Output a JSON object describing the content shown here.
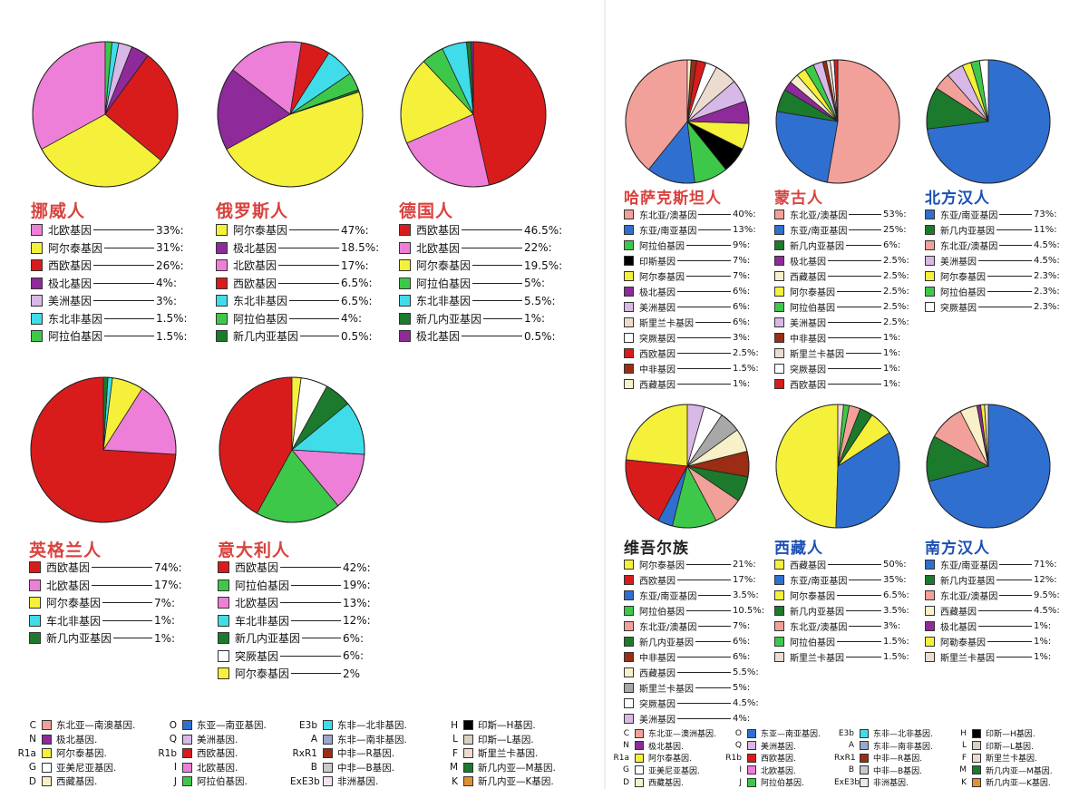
{
  "colors": {
    "C": "#f2a09a",
    "N": "#8e2a9a",
    "R1a": "#f5f03a",
    "G": "#ffffff",
    "D": "#f7f0c8",
    "O": "#2f6fd0",
    "Q": "#d8b8e6",
    "R1b": "#d81c1c",
    "I": "#ee7fd8",
    "J": "#3ec84a",
    "E3b": "#40dcea",
    "A": "#9aa8cc",
    "RxR1": "#9a2d14",
    "B": "#c9c9c9",
    "ExE3b": "#f2e3ef",
    "H": "#000000",
    "L": "#d8d0c0",
    "F": "#ecdccf",
    "M": "#1b7a2c",
    "K": "#e09030",
    "grey": "#a8a8a8",
    "salmon_title": "#d9423e",
    "blue_title": "#1b4fb5",
    "gold_title": "#222222"
  },
  "chart_data": [
    {
      "type": "pie",
      "title": "挪威人",
      "series": [
        {
          "label": "北欧基因",
          "value": 33,
          "value_text": "33%:",
          "color_key": "I"
        },
        {
          "label": "阿尔泰基因",
          "value": 31,
          "value_text": "31%:",
          "color_key": "R1a"
        },
        {
          "label": "西欧基因",
          "value": 26,
          "value_text": "26%:",
          "color_key": "R1b"
        },
        {
          "label": "极北基因",
          "value": 4,
          "value_text": "4%:",
          "color_key": "N"
        },
        {
          "label": "美洲基因",
          "value": 3,
          "value_text": "3%:",
          "color_key": "Q"
        },
        {
          "label": "东北非基因",
          "value": 1.5,
          "value_text": "1.5%:",
          "color_key": "E3b"
        },
        {
          "label": "阿拉伯基因",
          "value": 1.5,
          "value_text": "1.5%:",
          "color_key": "J"
        }
      ]
    },
    {
      "type": "pie",
      "title": "俄罗斯人",
      "series": [
        {
          "label": "阿尔泰基因",
          "value": 47,
          "value_text": "47%:",
          "color_key": "R1a"
        },
        {
          "label": "极北基因",
          "value": 18.5,
          "value_text": "18.5%:",
          "color_key": "N"
        },
        {
          "label": "北欧基因",
          "value": 17,
          "value_text": "17%:",
          "color_key": "I"
        },
        {
          "label": "西欧基因",
          "value": 6.5,
          "value_text": "6.5%:",
          "color_key": "R1b"
        },
        {
          "label": "东北非基因",
          "value": 6.5,
          "value_text": "6.5%:",
          "color_key": "E3b"
        },
        {
          "label": "阿拉伯基因",
          "value": 4,
          "value_text": "4%:",
          "color_key": "J"
        },
        {
          "label": "新几内亚基因",
          "value": 0.5,
          "value_text": "0.5%:",
          "color_key": "M"
        }
      ]
    },
    {
      "type": "pie",
      "title": "德国人",
      "series": [
        {
          "label": "西欧基因",
          "value": 46.5,
          "value_text": "46.5%:",
          "color_key": "R1b"
        },
        {
          "label": "北欧基因",
          "value": 22,
          "value_text": "22%:",
          "color_key": "I"
        },
        {
          "label": "阿尔泰基因",
          "value": 19.5,
          "value_text": "19.5%:",
          "color_key": "R1a"
        },
        {
          "label": "阿拉伯基因",
          "value": 5,
          "value_text": "5%:",
          "color_key": "J"
        },
        {
          "label": "东北非基因",
          "value": 5.5,
          "value_text": "5.5%:",
          "color_key": "E3b"
        },
        {
          "label": "新几内亚基因",
          "value": 1,
          "value_text": "1%:",
          "color_key": "M"
        },
        {
          "label": "极北基因",
          "value": 0.5,
          "value_text": "0.5%:",
          "color_key": "N"
        }
      ]
    },
    {
      "type": "pie",
      "title": "英格兰人",
      "series": [
        {
          "label": "西欧基因",
          "value": 74,
          "value_text": "74%:",
          "color_key": "R1b"
        },
        {
          "label": "北欧基因",
          "value": 17,
          "value_text": "17%:",
          "color_key": "I"
        },
        {
          "label": "阿尔泰基因",
          "value": 7,
          "value_text": "7%:",
          "color_key": "R1a"
        },
        {
          "label": "车北非基因",
          "value": 1,
          "value_text": "1%:",
          "color_key": "E3b"
        },
        {
          "label": "新几内亚基因",
          "value": 1,
          "value_text": "1%:",
          "color_key": "M"
        }
      ]
    },
    {
      "type": "pie",
      "title": "意大利人",
      "series": [
        {
          "label": "西欧基因",
          "value": 42,
          "value_text": "42%:",
          "color_key": "R1b"
        },
        {
          "label": "阿拉伯基因",
          "value": 19,
          "value_text": "19%:",
          "color_key": "J"
        },
        {
          "label": "北欧基因",
          "value": 13,
          "value_text": "13%:",
          "color_key": "I"
        },
        {
          "label": "车北非基因",
          "value": 12,
          "value_text": "12%:",
          "color_key": "E3b"
        },
        {
          "label": "新几内亚基因",
          "value": 6,
          "value_text": "6%:",
          "color_key": "M"
        },
        {
          "label": "突厥基因",
          "value": 6,
          "value_text": "6%:",
          "color_key": "G"
        },
        {
          "label": "阿尔泰基因",
          "value": 2,
          "value_text": "2%",
          "color_key": "R1a"
        }
      ]
    },
    {
      "type": "pie",
      "title": "哈萨克斯坦人",
      "series": [
        {
          "label": "东北亚/澳基因",
          "value": 40,
          "value_text": "40%:",
          "color_key": "C"
        },
        {
          "label": "东亚/南亚基因",
          "value": 13,
          "value_text": "13%:",
          "color_key": "O"
        },
        {
          "label": "阿拉伯基因",
          "value": 9,
          "value_text": "9%:",
          "color_key": "J"
        },
        {
          "label": "印斯基因",
          "value": 7,
          "value_text": "7%:",
          "color_key": "H"
        },
        {
          "label": "阿尔泰基因",
          "value": 7,
          "value_text": "7%:",
          "color_key": "R1a"
        },
        {
          "label": "极北基因",
          "value": 6,
          "value_text": "6%:",
          "color_key": "N"
        },
        {
          "label": "美洲基因",
          "value": 6,
          "value_text": "6%:",
          "color_key": "Q"
        },
        {
          "label": "斯里兰卡基因",
          "value": 6,
          "value_text": "6%:",
          "color_key": "F"
        },
        {
          "label": "突厥基因",
          "value": 3,
          "value_text": "3%:",
          "color_key": "G"
        },
        {
          "label": "西欧基因",
          "value": 2.5,
          "value_text": "2.5%:",
          "color_key": "R1b"
        },
        {
          "label": "中非基因",
          "value": 1.5,
          "value_text": "1.5%:",
          "color_key": "RxR1"
        },
        {
          "label": "西藏基因",
          "value": 1,
          "value_text": "1%:",
          "color_key": "D"
        }
      ]
    },
    {
      "type": "pie",
      "title": "蒙古人",
      "series": [
        {
          "label": "东北亚/澳基因",
          "value": 53,
          "value_text": "53%:",
          "color_key": "C"
        },
        {
          "label": "东亚/南亚基因",
          "value": 25,
          "value_text": "25%:",
          "color_key": "O"
        },
        {
          "label": "新几内亚基因",
          "value": 6,
          "value_text": "6%:",
          "color_key": "M"
        },
        {
          "label": "极北基因",
          "value": 2.5,
          "value_text": "2.5%:",
          "color_key": "N"
        },
        {
          "label": "西藏基因",
          "value": 2.5,
          "value_text": "2.5%:",
          "color_key": "D"
        },
        {
          "label": "阿尔泰基因",
          "value": 2.5,
          "value_text": "2.5%:",
          "color_key": "R1a"
        },
        {
          "label": "阿拉伯基因",
          "value": 2.5,
          "value_text": "2.5%:",
          "color_key": "J"
        },
        {
          "label": "美洲基因",
          "value": 2.5,
          "value_text": "2.5%:",
          "color_key": "Q"
        },
        {
          "label": "中非基因",
          "value": 1,
          "value_text": "1%:",
          "color_key": "RxR1"
        },
        {
          "label": "斯里兰卡基因",
          "value": 1,
          "value_text": "1%:",
          "color_key": "F"
        },
        {
          "label": "突厥基因",
          "value": 1,
          "value_text": "1%:",
          "color_key": "G"
        },
        {
          "label": "西欧基因",
          "value": 1,
          "value_text": "1%:",
          "color_key": "R1b"
        }
      ]
    },
    {
      "type": "pie",
      "title": "北方汉人",
      "series": [
        {
          "label": "东亚/南亚基因",
          "value": 73,
          "value_text": "73%:",
          "color_key": "O"
        },
        {
          "label": "新几内亚基因",
          "value": 11,
          "value_text": "11%:",
          "color_key": "M"
        },
        {
          "label": "东北亚/澳基因",
          "value": 4.5,
          "value_text": "4.5%:",
          "color_key": "C"
        },
        {
          "label": "美洲基因",
          "value": 4.5,
          "value_text": "4.5%:",
          "color_key": "Q"
        },
        {
          "label": "阿尔泰基因",
          "value": 2.3,
          "value_text": "2.3%:",
          "color_key": "R1a"
        },
        {
          "label": "阿拉伯基因",
          "value": 2.3,
          "value_text": "2.3%:",
          "color_key": "J"
        },
        {
          "label": "突厥基因",
          "value": 2.3,
          "value_text": "2.3%:",
          "color_key": "G"
        }
      ]
    },
    {
      "type": "pie",
      "title": "维吾尔族",
      "series": [
        {
          "label": "阿尔泰基因",
          "value": 21,
          "value_text": "21%:",
          "color_key": "R1a"
        },
        {
          "label": "西欧基因",
          "value": 17,
          "value_text": "17%:",
          "color_key": "R1b"
        },
        {
          "label": "东亚/南亚基因",
          "value": 3.5,
          "value_text": "3.5%:",
          "color_key": "O"
        },
        {
          "label": "阿拉伯基因",
          "value": 10.5,
          "value_text": "10.5%:",
          "color_key": "J"
        },
        {
          "label": "东北亚/澳基因",
          "value": 7,
          "value_text": "7%:",
          "color_key": "C"
        },
        {
          "label": "新几内亚基因",
          "value": 6,
          "value_text": "6%:",
          "color_key": "M"
        },
        {
          "label": "中非基因",
          "value": 6,
          "value_text": "6%:",
          "color_key": "RxR1"
        },
        {
          "label": "西藏基因",
          "value": 5.5,
          "value_text": "5.5%:",
          "color_key": "D"
        },
        {
          "label": "斯里兰卡基因",
          "value": 5,
          "value_text": "5%:",
          "color_key": "grey"
        },
        {
          "label": "突厥基因",
          "value": 4.5,
          "value_text": "4.5%:",
          "color_key": "G"
        },
        {
          "label": "美洲基因",
          "value": 4,
          "value_text": "4%:",
          "color_key": "Q"
        }
      ]
    },
    {
      "type": "pie",
      "title": "西藏人",
      "series": [
        {
          "label": "西藏基因",
          "value": 50,
          "value_text": "50%:",
          "color_key": "R1a"
        },
        {
          "label": "东亚/南亚基因",
          "value": 35,
          "value_text": "35%:",
          "color_key": "O"
        },
        {
          "label": "阿尔泰基因",
          "value": 6.5,
          "value_text": "6.5%:",
          "color_key": "R1a"
        },
        {
          "label": "新几内亚基因",
          "value": 3.5,
          "value_text": "3.5%:",
          "color_key": "M"
        },
        {
          "label": "东北亚/澳基因",
          "value": 3,
          "value_text": "3%:",
          "color_key": "C"
        },
        {
          "label": "阿拉伯基因",
          "value": 1.5,
          "value_text": "1.5%:",
          "color_key": "J"
        },
        {
          "label": "斯里兰卡基因",
          "value": 1.5,
          "value_text": "1.5%:",
          "color_key": "F"
        }
      ]
    },
    {
      "type": "pie",
      "title": "南方汉人",
      "series": [
        {
          "label": "东亚/南亚基因",
          "value": 71,
          "value_text": "71%:",
          "color_key": "O"
        },
        {
          "label": "新几内亚基因",
          "value": 12,
          "value_text": "12%:",
          "color_key": "M"
        },
        {
          "label": "东北亚/澳基因",
          "value": 9.5,
          "value_text": "9.5%:",
          "color_key": "C"
        },
        {
          "label": "西藏基因",
          "value": 4.5,
          "value_text": "4.5%:",
          "color_key": "D"
        },
        {
          "label": "极北基因",
          "value": 1,
          "value_text": "1%:",
          "color_key": "N"
        },
        {
          "label": "阿勒泰基因",
          "value": 1,
          "value_text": "1%:",
          "color_key": "R1a"
        },
        {
          "label": "斯里兰卡基因",
          "value": 1,
          "value_text": "1%:",
          "color_key": "F"
        }
      ]
    }
  ],
  "key_left": [
    {
      "code": "C",
      "label": "东北亚—南澳基因.",
      "color_key": "C"
    },
    {
      "code": "N",
      "label": "极北基因.",
      "color_key": "N"
    },
    {
      "code": "R1a",
      "label": "阿尔泰基因.",
      "color_key": "R1a"
    },
    {
      "code": "G",
      "label": "亚美尼亚基因.",
      "color_key": "G"
    },
    {
      "code": "D",
      "label": "西藏基因.",
      "color_key": "D"
    },
    {
      "code": "O",
      "label": "东亚—南亚基因.",
      "color_key": "O"
    },
    {
      "code": "Q",
      "label": "美洲基因.",
      "color_key": "Q"
    },
    {
      "code": "R1b",
      "label": "西欧基因.",
      "color_key": "R1b"
    },
    {
      "code": "I",
      "label": "北欧基因.",
      "color_key": "I"
    },
    {
      "code": "J",
      "label": "阿拉伯基因.",
      "color_key": "J"
    },
    {
      "code": "E3b",
      "label": "东非—北非基因.",
      "color_key": "E3b"
    },
    {
      "code": "A",
      "label": "东非—南非基因.",
      "color_key": "A"
    },
    {
      "code": "RxR1",
      "label": "中非—R基因.",
      "color_key": "RxR1"
    },
    {
      "code": "B",
      "label": "中非—B基因.",
      "color_key": "B"
    },
    {
      "code": "ExE3b",
      "label": "非洲基因.",
      "color_key": "ExE3b"
    },
    {
      "code": "H",
      "label": "印斯—H基因.",
      "color_key": "H"
    },
    {
      "code": "L",
      "label": "印斯—L基因.",
      "color_key": "L"
    },
    {
      "code": "F",
      "label": "斯里兰卡基因.",
      "color_key": "F"
    },
    {
      "code": "M",
      "label": "新几内亚—M基因.",
      "color_key": "M"
    },
    {
      "code": "K",
      "label": "新几内亚—K基因.",
      "color_key": "K"
    }
  ],
  "key_right": [
    {
      "code": "C",
      "label": "东北亚—澳洲基因.",
      "color_key": "C"
    },
    {
      "code": "N",
      "label": "极北基因.",
      "color_key": "N"
    },
    {
      "code": "R1a",
      "label": "阿尔泰基因.",
      "color_key": "R1a"
    },
    {
      "code": "G",
      "label": "亚美尼亚基因.",
      "color_key": "G"
    },
    {
      "code": "D",
      "label": "西藏基因.",
      "color_key": "D"
    },
    {
      "code": "O",
      "label": "东亚—南亚基因.",
      "color_key": "O"
    },
    {
      "code": "Q",
      "label": "美洲基因.",
      "color_key": "Q"
    },
    {
      "code": "R1b",
      "label": "西欧基因.",
      "color_key": "R1b"
    },
    {
      "code": "I",
      "label": "北欧基因.",
      "color_key": "I"
    },
    {
      "code": "J",
      "label": "阿拉伯基因.",
      "color_key": "J"
    },
    {
      "code": "E3b",
      "label": "东非—北非基因.",
      "color_key": "E3b"
    },
    {
      "code": "A",
      "label": "东非—南非基因.",
      "color_key": "A"
    },
    {
      "code": "RxR1",
      "label": "中非—R基因.",
      "color_key": "RxR1"
    },
    {
      "code": "B",
      "label": "中非—B基因.",
      "color_key": "B"
    },
    {
      "code": "ExE3b",
      "label": "非洲基因.",
      "color_key": "ExE3b"
    },
    {
      "code": "H",
      "label": "印斯—H基因.",
      "color_key": "H"
    },
    {
      "code": "L",
      "label": "印斯—L基因.",
      "color_key": "L"
    },
    {
      "code": "F",
      "label": "斯里兰卡基因.",
      "color_key": "F"
    },
    {
      "code": "M",
      "label": "新几内亚—M基因.",
      "color_key": "M"
    },
    {
      "code": "K",
      "label": "新几内亚—K基因.",
      "color_key": "K"
    }
  ]
}
